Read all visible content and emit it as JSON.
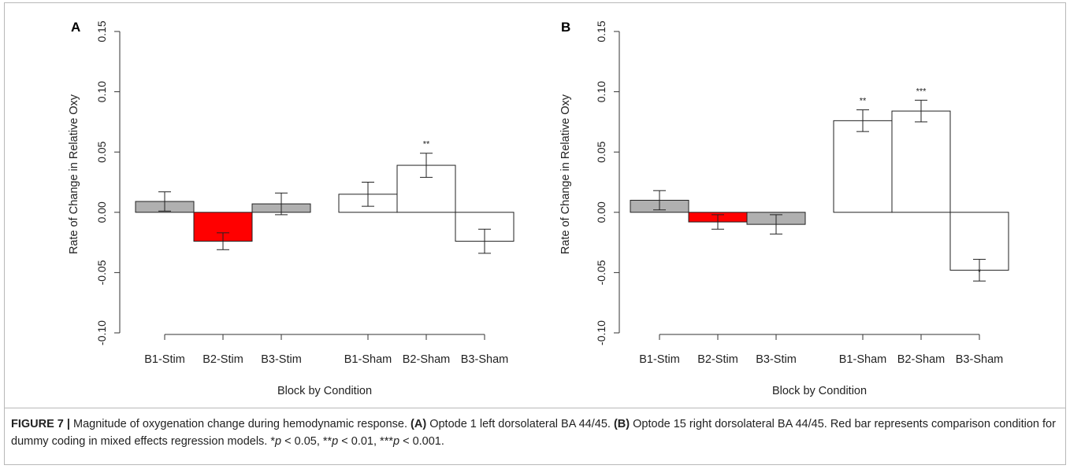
{
  "chart_data": [
    {
      "type": "bar",
      "panel": "A",
      "categories": [
        "B1-Stim",
        "B2-Stim",
        "B3-Stim",
        "B1-Sham",
        "B2-Sham",
        "B3-Sham"
      ],
      "values": [
        0.009,
        -0.024,
        0.007,
        0.015,
        0.039,
        -0.024
      ],
      "error": [
        0.008,
        0.007,
        0.009,
        0.01,
        0.01,
        0.01
      ],
      "significance": [
        "",
        "",
        "",
        "",
        "**",
        ""
      ],
      "colors": [
        "#b0b0b0",
        "#ff0000",
        "#b0b0b0",
        "#ffffff",
        "#ffffff",
        "#ffffff"
      ],
      "xlabel": "Block by Condition",
      "ylabel": "Rate of Change in Relative Oxy",
      "ylim": [
        -0.1,
        0.15
      ],
      "yticks": [
        "-0.10",
        "-0.05",
        "0.00",
        "0.05",
        "0.10",
        "0.15"
      ],
      "grid": false
    },
    {
      "type": "bar",
      "panel": "B",
      "categories": [
        "B1-Stim",
        "B2-Stim",
        "B3-Stim",
        "B1-Sham",
        "B2-Sham",
        "B3-Sham"
      ],
      "values": [
        0.01,
        -0.008,
        -0.01,
        0.076,
        0.084,
        -0.048
      ],
      "error": [
        0.008,
        0.006,
        0.008,
        0.009,
        0.009,
        0.009
      ],
      "significance": [
        "",
        "",
        "",
        "**",
        "***",
        "*"
      ],
      "colors": [
        "#b0b0b0",
        "#ff0000",
        "#b0b0b0",
        "#ffffff",
        "#ffffff",
        "#ffffff"
      ],
      "xlabel": "Block by Condition",
      "ylabel": "Rate of Change in Relative Oxy",
      "ylim": [
        -0.1,
        0.15
      ],
      "yticks": [
        "-0.10",
        "-0.05",
        "0.00",
        "0.05",
        "0.10",
        "0.15"
      ],
      "grid": false
    }
  ],
  "caption": {
    "figure_label": "FIGURE 7 |",
    "text_1": " Magnitude of oxygenation change during hemodynamic response. ",
    "ref_a": "(A)",
    "text_2": " Optode 1 left dorsolateral BA 44/45. ",
    "ref_b": "(B)",
    "text_3": " Optode 15 right dorsolateral BA 44/45. Red bar represents comparison condition for dummy coding in mixed effects regression models. *",
    "p1": "p",
    "text_4": " < 0.05, **",
    "p2": "p",
    "text_5": " < 0.01, ***",
    "p3": "p",
    "text_6": " < 0.001."
  }
}
